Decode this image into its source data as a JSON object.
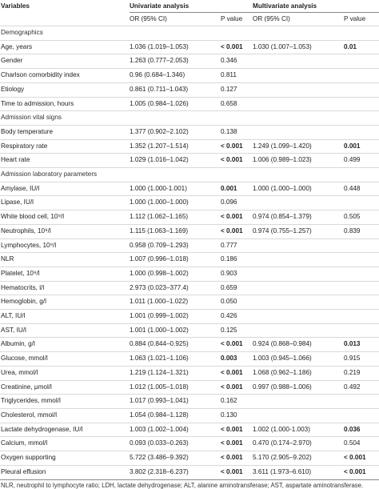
{
  "header": {
    "variables": "Variables",
    "univariate": "Univariate analysis",
    "multivariate": "Multivariate analysis",
    "or_ci": "OR (95% CI)",
    "p_value": "P value"
  },
  "rows": [
    {
      "type": "section",
      "label": "Demographics"
    },
    {
      "type": "data",
      "label": "Age, years",
      "uni_or": "1.036 (1.019–1.053)",
      "uni_p": "< 0.001",
      "uni_bold": true,
      "multi_or": "1.030 (1.007–1.053)",
      "multi_p": "0.01",
      "multi_bold": true
    },
    {
      "type": "data",
      "label": "Gender",
      "uni_or": "1.263 (0.777–2.053)",
      "uni_p": "0.346",
      "uni_bold": false,
      "multi_or": "",
      "multi_p": "",
      "multi_bold": false
    },
    {
      "type": "data",
      "label": "Charlson comorbidity index",
      "uni_or": "0.96 (0.684–1.346)",
      "uni_p": "0.811",
      "uni_bold": false,
      "multi_or": "",
      "multi_p": "",
      "multi_bold": false
    },
    {
      "type": "data",
      "label": "Etiology",
      "uni_or": "0.861 (0.711–1.043)",
      "uni_p": "0.127",
      "uni_bold": false,
      "multi_or": "",
      "multi_p": "",
      "multi_bold": false
    },
    {
      "type": "data",
      "label": "Time to admission, hours",
      "uni_or": "1.005 (0.984–1.026)",
      "uni_p": "0.658",
      "uni_bold": false,
      "multi_or": "",
      "multi_p": "",
      "multi_bold": false
    },
    {
      "type": "section",
      "label": "Admission vital signs"
    },
    {
      "type": "data",
      "label": "Body temperature",
      "uni_or": "1.377 (0.902–2.102)",
      "uni_p": "0.138",
      "uni_bold": false,
      "multi_or": "",
      "multi_p": "",
      "multi_bold": false
    },
    {
      "type": "data",
      "label": "Respiratory rate",
      "uni_or": "1.352 (1.207–1.514)",
      "uni_p": "< 0.001",
      "uni_bold": true,
      "multi_or": "1.249 (1.099–1.420)",
      "multi_p": "0.001",
      "multi_bold": true
    },
    {
      "type": "data",
      "label": "Heart rate",
      "uni_or": "1.029 (1.016–1.042)",
      "uni_p": "< 0.001",
      "uni_bold": true,
      "multi_or": "1.006 (0.989–1.023)",
      "multi_p": "0.499",
      "multi_bold": false
    },
    {
      "type": "section",
      "label": "Admission laboratory parameters"
    },
    {
      "type": "data",
      "label": "Amylase, IU/l",
      "uni_or": "1.000 (1.000-1.001)",
      "uni_p": "0.001",
      "uni_bold": true,
      "multi_or": "1.000 (1.000–1.000)",
      "multi_p": "0.448",
      "multi_bold": false
    },
    {
      "type": "data",
      "label": "Lipase, IU/l",
      "uni_or": "1.000 (1.000–1.000)",
      "uni_p": "0.096",
      "uni_bold": false,
      "multi_or": "",
      "multi_p": "",
      "multi_bold": false
    },
    {
      "type": "data",
      "label": "White blood cell, 10⁹/l",
      "uni_or": "1.112 (1.062–1.165)",
      "uni_p": "< 0.001",
      "uni_bold": true,
      "multi_or": "0.974 (0.854–1.379)",
      "multi_p": "0.505",
      "multi_bold": false
    },
    {
      "type": "data",
      "label": "Neutrophils, 10⁹/l",
      "uni_or": "1.115 (1.063–1.169)",
      "uni_p": "< 0.001",
      "uni_bold": true,
      "multi_or": "0.974 (0.755–1.257)",
      "multi_p": "0.839",
      "multi_bold": false
    },
    {
      "type": "data",
      "label": "Lymphocytes, 10⁹/l",
      "uni_or": "0.958 (0.709–1.293)",
      "uni_p": "0.777",
      "uni_bold": false,
      "multi_or": "",
      "multi_p": "",
      "multi_bold": false
    },
    {
      "type": "data",
      "label": "NLR",
      "uni_or": "1.007 (0.996–1.018)",
      "uni_p": "0.186",
      "uni_bold": false,
      "multi_or": "",
      "multi_p": "",
      "multi_bold": false
    },
    {
      "type": "data",
      "label": "Platelet, 10⁹/l",
      "uni_or": "1.000 (0.998–1.002)",
      "uni_p": "0.903",
      "uni_bold": false,
      "multi_or": "",
      "multi_p": "",
      "multi_bold": false
    },
    {
      "type": "data",
      "label": "Hematocrits, l/l",
      "uni_or": "2.973 (0.023–377.4)",
      "uni_p": "0.659",
      "uni_bold": false,
      "multi_or": "",
      "multi_p": "",
      "multi_bold": false
    },
    {
      "type": "data",
      "label": "Hemoglobin, g/l",
      "uni_or": "1.011 (1.000–1.022)",
      "uni_p": "0.050",
      "uni_bold": false,
      "multi_or": "",
      "multi_p": "",
      "multi_bold": false
    },
    {
      "type": "data",
      "label": "ALT, IU/l",
      "uni_or": "1.001 (0.999–1.002)",
      "uni_p": "0.426",
      "uni_bold": false,
      "multi_or": "",
      "multi_p": "",
      "multi_bold": false
    },
    {
      "type": "data",
      "label": "AST, IU/l",
      "uni_or": "1.001 (1.000–1.002)",
      "uni_p": "0.125",
      "uni_bold": false,
      "multi_or": "",
      "multi_p": "",
      "multi_bold": false
    },
    {
      "type": "data",
      "label": "Albumin, g/l",
      "uni_or": "0.884 (0.844–0.925)",
      "uni_p": "< 0.001",
      "uni_bold": true,
      "multi_or": "0.924 (0.868–0.984)",
      "multi_p": "0.013",
      "multi_bold": true
    },
    {
      "type": "data",
      "label": "Glucose, mmol/l",
      "uni_or": "1.063 (1.021–1.106)",
      "uni_p": "0.003",
      "uni_bold": true,
      "multi_or": "1.003 (0.945–1.066)",
      "multi_p": "0.915",
      "multi_bold": false
    },
    {
      "type": "data",
      "label": "Urea, mmol/l",
      "uni_or": "1.219 (1.124–1.321)",
      "uni_p": "< 0.001",
      "uni_bold": true,
      "multi_or": "1.068 (0.962–1.186)",
      "multi_p": "0.219",
      "multi_bold": false
    },
    {
      "type": "data",
      "label": "Creatinine, μmol/l",
      "uni_or": "1.012 (1.005–1.018)",
      "uni_p": "< 0.001",
      "uni_bold": true,
      "multi_or": "0.997 (0.988–1.006)",
      "multi_p": "0.492",
      "multi_bold": false
    },
    {
      "type": "data",
      "label": "Triglycerides, mmol/l",
      "uni_or": "1.017 (0.993–1.041)",
      "uni_p": "0.162",
      "uni_bold": false,
      "multi_or": "",
      "multi_p": "",
      "multi_bold": false
    },
    {
      "type": "data",
      "label": "Cholesterol, mmol/l",
      "uni_or": "1.054 (0.984–1.128)",
      "uni_p": "0.130",
      "uni_bold": false,
      "multi_or": "",
      "multi_p": "",
      "multi_bold": false
    },
    {
      "type": "data",
      "label": "Lactate dehydrogenase, IU/l",
      "uni_or": "1.003 (1.002–1.004)",
      "uni_p": "< 0.001",
      "uni_bold": true,
      "multi_or": "1.002 (1.000-1.003)",
      "multi_p": "0.036",
      "multi_bold": true
    },
    {
      "type": "data",
      "label": "Calcium, mmol/l",
      "uni_or": "0.093 (0.033–0.263)",
      "uni_p": "< 0.001",
      "uni_bold": true,
      "multi_or": "0.470 (0.174–2.970)",
      "multi_p": "0.504",
      "multi_bold": false
    },
    {
      "type": "data",
      "label": "Oxygen supporting",
      "uni_or": "5.722 (3.486–9.392)",
      "uni_p": "< 0.001",
      "uni_bold": true,
      "multi_or": "5.170 (2.905–9.202)",
      "multi_p": "< 0.001",
      "multi_bold": true
    },
    {
      "type": "data",
      "label": "Pleural effusion",
      "uni_or": "3.802 (2.318–6.237)",
      "uni_p": "< 0.001",
      "uni_bold": true,
      "multi_or": "3.611 (1.973–6.610)",
      "multi_p": "< 0.001",
      "multi_bold": true
    }
  ],
  "footnote": "NLR, neutrophil to lymphocyte ratio; LDH, lactate dehydrogenase; ALT, alanine aminotransferase; AST, aspartate aminotransferase."
}
